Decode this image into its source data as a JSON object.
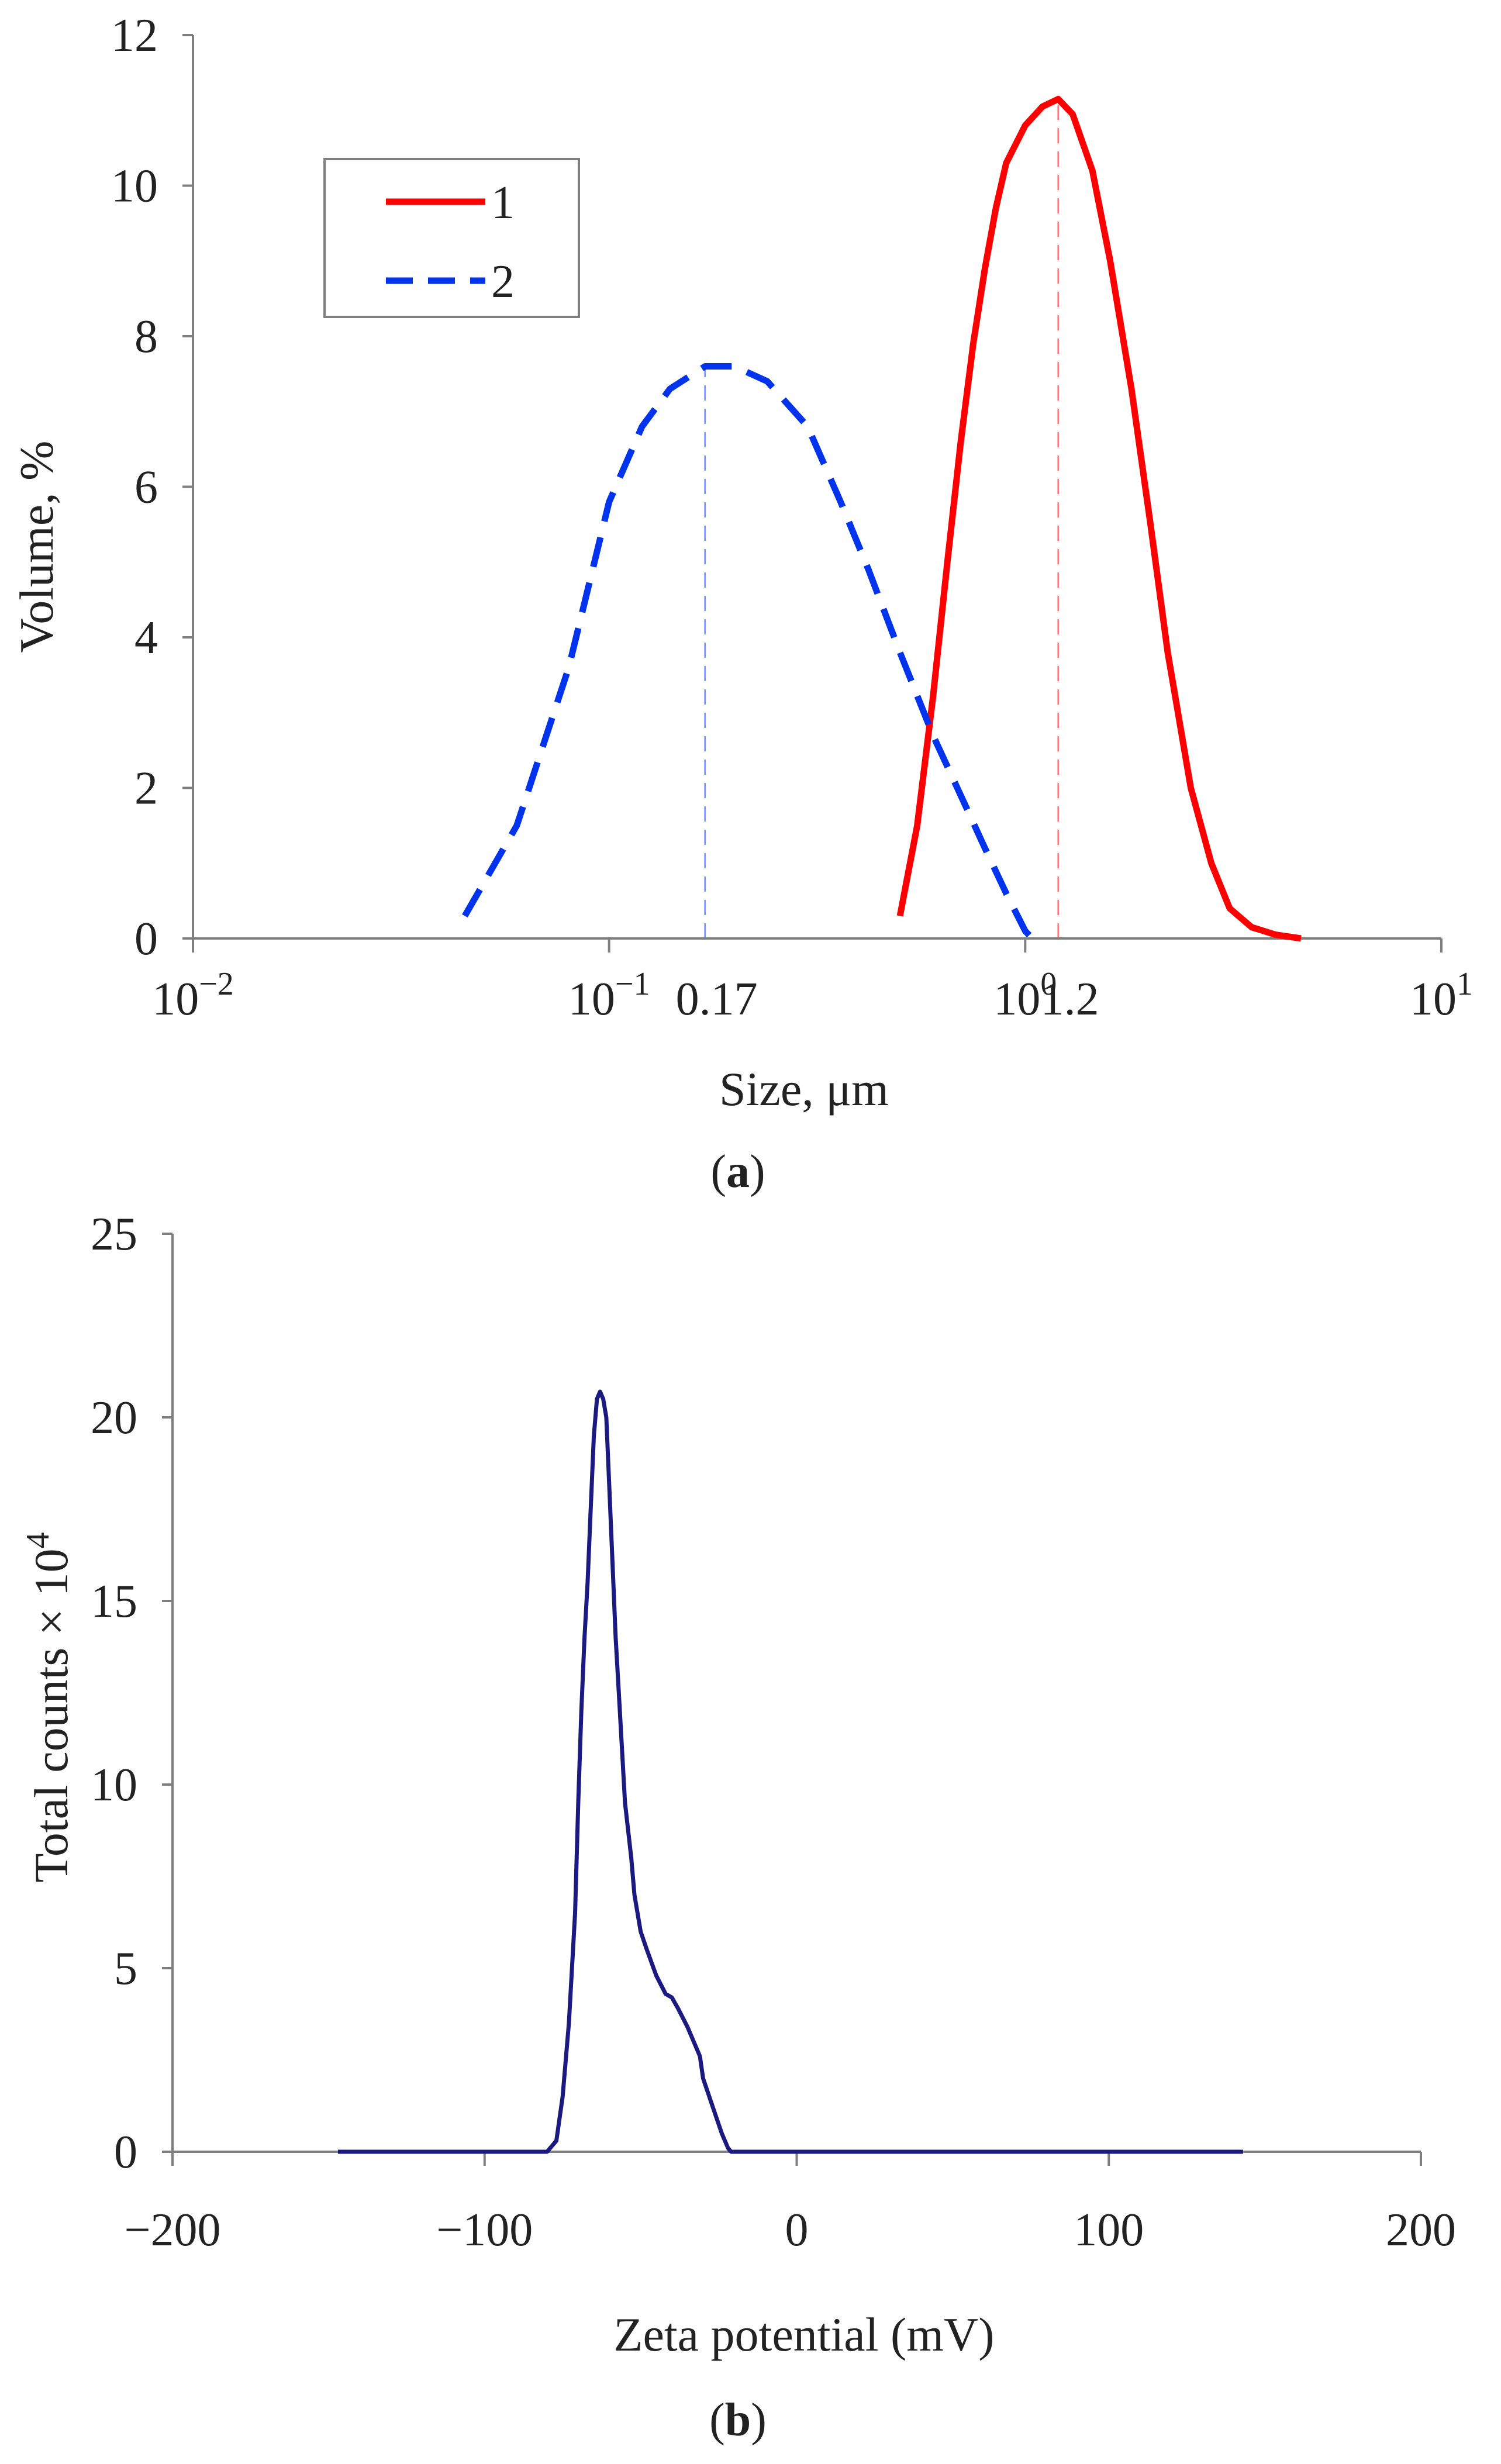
{
  "chart_data": [
    {
      "id": "a",
      "type": "line",
      "panel_label": "a",
      "xlabel": "Size, μm",
      "ylabel": "Volume,  %",
      "x_scale": "log",
      "xlim": [
        0.01,
        10
      ],
      "ylim": [
        0,
        12
      ],
      "x_ticks": [
        {
          "value": 0.01,
          "base": "10",
          "exp": "−2"
        },
        {
          "value": 0.1,
          "base": "10",
          "exp": "−1"
        },
        {
          "value": 1,
          "base": "10",
          "exp": "0"
        },
        {
          "value": 10,
          "base": "10",
          "exp": "1"
        }
      ],
      "y_ticks": [
        0,
        2,
        4,
        6,
        8,
        10,
        12
      ],
      "peak_labels": [
        {
          "text": "0.17",
          "value": 0.17
        },
        {
          "text": "1.2",
          "value": 1.2
        }
      ],
      "legend": [
        {
          "label": "1",
          "series": "1"
        },
        {
          "label": "2",
          "series": "2"
        }
      ],
      "series": [
        {
          "name": "1",
          "color": "#ff0000",
          "dash": "solid",
          "peak_x": 1.2,
          "x": [
            0.5,
            0.55,
            0.6,
            0.65,
            0.7,
            0.75,
            0.8,
            0.85,
            0.9,
            1.0,
            1.1,
            1.2,
            1.3,
            1.45,
            1.6,
            1.8,
            2.0,
            2.2,
            2.5,
            2.8,
            3.1,
            3.5,
            4.0,
            4.6
          ],
          "y": [
            0.3,
            1.5,
            3.2,
            5.0,
            6.6,
            7.9,
            8.9,
            9.7,
            10.3,
            10.8,
            11.05,
            11.15,
            10.95,
            10.2,
            9.0,
            7.3,
            5.5,
            3.8,
            2.0,
            1.0,
            0.4,
            0.15,
            0.05,
            0.0
          ]
        },
        {
          "name": "2",
          "color": "#0033ee",
          "dash": "dashed",
          "peak_x": 0.17,
          "x": [
            0.045,
            0.06,
            0.08,
            0.1,
            0.12,
            0.14,
            0.17,
            0.2,
            0.24,
            0.3,
            0.36,
            0.42,
            0.5,
            0.6,
            0.7,
            0.8,
            0.9,
            1.0,
            1.04
          ],
          "y": [
            0.3,
            1.5,
            3.6,
            5.8,
            6.8,
            7.3,
            7.6,
            7.6,
            7.4,
            6.8,
            5.8,
            4.9,
            3.8,
            2.7,
            1.9,
            1.2,
            0.6,
            0.1,
            0.0
          ]
        }
      ]
    },
    {
      "id": "b",
      "type": "line",
      "panel_label": "b",
      "xlabel": "Zeta potential (mV)",
      "ylabel": "Total counts × 10",
      "ylabel_exp": "4",
      "xlim": [
        -200,
        200
      ],
      "ylim": [
        0,
        25
      ],
      "x_ticks": [
        {
          "value": -200,
          "label": "−200"
        },
        {
          "value": -100,
          "label": "−100"
        },
        {
          "value": 0,
          "label": "0"
        },
        {
          "value": 100,
          "label": "100"
        },
        {
          "value": 200,
          "label": "200"
        }
      ],
      "y_ticks": [
        0,
        5,
        10,
        15,
        20,
        25
      ],
      "series": [
        {
          "name": "zeta",
          "color": "#1a1a80",
          "x": [
            -147,
            -80,
            -77,
            -75,
            -73,
            -71,
            -70,
            -69,
            -68,
            -67,
            -66,
            -65,
            -64,
            -63,
            -62,
            -61,
            -60,
            -59,
            -58,
            -57,
            -56,
            -55,
            -53,
            -52,
            -50,
            -48,
            -45,
            -42,
            -40,
            -38,
            -35,
            -33,
            -31,
            -30,
            -28,
            -26,
            -24,
            -22,
            -21,
            0,
            143
          ],
          "y": [
            0,
            0,
            0.3,
            1.5,
            3.5,
            6.5,
            9.5,
            12.0,
            14.0,
            15.5,
            17.5,
            19.5,
            20.5,
            20.7,
            20.5,
            20.0,
            18.0,
            16.0,
            14.0,
            12.5,
            11.0,
            9.5,
            8.0,
            7.0,
            6.0,
            5.5,
            4.8,
            4.3,
            4.2,
            3.9,
            3.4,
            3.0,
            2.6,
            2.0,
            1.5,
            1.0,
            0.5,
            0.1,
            0,
            0,
            0
          ]
        }
      ]
    }
  ]
}
